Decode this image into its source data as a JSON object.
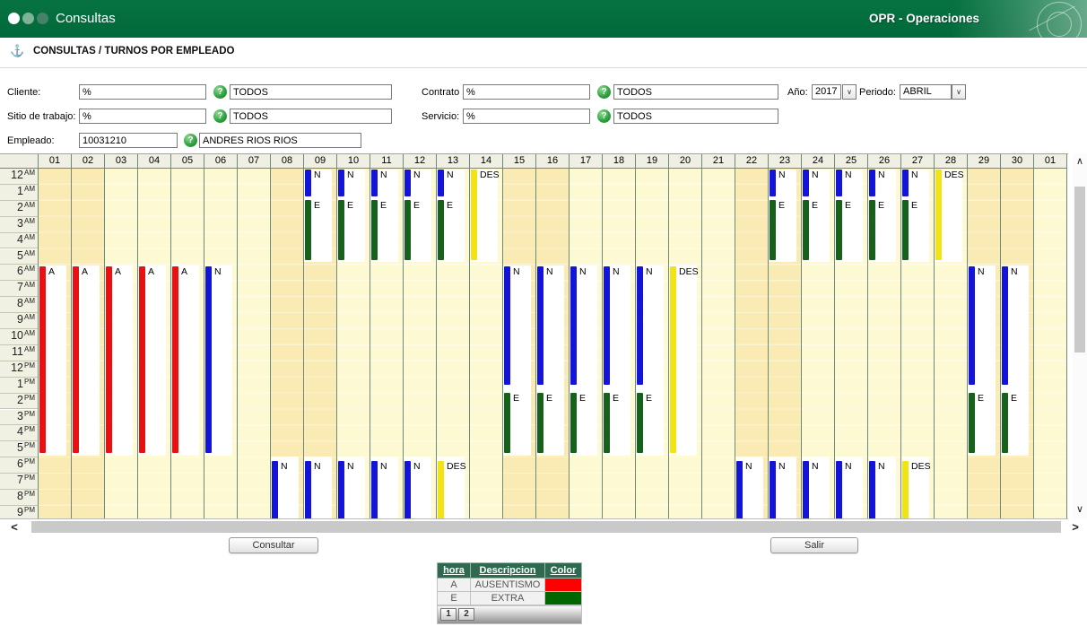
{
  "titlebar": {
    "title": "Consultas",
    "right_label": "OPR - Operaciones"
  },
  "breadcrumb": {
    "title": "CONSULTAS / TURNOS POR EMPLEADO"
  },
  "icons": {
    "help": "?",
    "anchor": "⚓",
    "dropdown": "∨",
    "scroll_up": "∧",
    "scroll_down": "∨",
    "scroll_left": "<",
    "scroll_right": ">"
  },
  "filters": {
    "cliente": {
      "label": "Cliente:",
      "code": "%",
      "name": "TODOS"
    },
    "contrato": {
      "label": "Contrato",
      "code": "%",
      "name": "TODOS"
    },
    "anio": {
      "label": "Año:",
      "value": "2017"
    },
    "periodo": {
      "label": "Periodo:",
      "value": "ABRIL"
    },
    "sitio": {
      "label": "Sitio de trabajo:",
      "code": "%",
      "name": "TODOS"
    },
    "servicio": {
      "label": "Servicio:",
      "code": "%",
      "name": "TODOS"
    },
    "empleado": {
      "label": "Empleado:",
      "code": "10031210",
      "name": "ANDRES RIOS RIOS"
    }
  },
  "buttons": {
    "consultar": "Consultar",
    "salir": "Salir"
  },
  "chart_data": {
    "type": "table",
    "title": "Turnos por empleado — ABRIL 2017 (ANDRES RIOS RIOS)",
    "description": "Schedule grid: columns are days 01-30 of the period plus next 01; rows are hours of day (12 AM to 9 PM visible). Vertical colored bars mark shifts: N=blue, E=green (EXTRA), A=red (AUSENTISMO), DES=yellow (descanso). Weekend day columns are shaded darker.",
    "days": [
      "01",
      "02",
      "03",
      "04",
      "05",
      "06",
      "07",
      "08",
      "09",
      "10",
      "11",
      "12",
      "13",
      "14",
      "15",
      "16",
      "17",
      "18",
      "19",
      "20",
      "21",
      "22",
      "23",
      "24",
      "25",
      "26",
      "27",
      "28",
      "29",
      "30",
      "01"
    ],
    "weekend_day_indices": [
      0,
      1,
      7,
      8,
      14,
      15,
      21,
      22,
      28,
      29
    ],
    "hour_labels": [
      [
        "12",
        "AM"
      ],
      [
        "1",
        "AM"
      ],
      [
        "2",
        "AM"
      ],
      [
        "3",
        "AM"
      ],
      [
        "4",
        "AM"
      ],
      [
        "5",
        "AM"
      ],
      [
        "6",
        "AM"
      ],
      [
        "7",
        "AM"
      ],
      [
        "8",
        "AM"
      ],
      [
        "9",
        "AM"
      ],
      [
        "10",
        "AM"
      ],
      [
        "11",
        "AM"
      ],
      [
        "12",
        "PM"
      ],
      [
        "1",
        "PM"
      ],
      [
        "2",
        "PM"
      ],
      [
        "3",
        "PM"
      ],
      [
        "4",
        "PM"
      ],
      [
        "5",
        "PM"
      ],
      [
        "6",
        "PM"
      ],
      [
        "7",
        "PM"
      ],
      [
        "8",
        "PM"
      ],
      [
        "9",
        "PM"
      ]
    ],
    "colors": {
      "N": "#1414d8",
      "E": "#17611c",
      "A": "#e81111",
      "DES": "#f2e414"
    },
    "shifts": [
      {
        "days": [
          9,
          10,
          11,
          12,
          13,
          23,
          24,
          25,
          26,
          27
        ],
        "block": [
          0.03,
          5.82
        ],
        "segments": [
          {
            "code": "N",
            "start": 0.06,
            "end": 1.72
          },
          {
            "code": "E",
            "start": 1.98,
            "end": 5.7
          }
        ]
      },
      {
        "days": [
          14,
          28
        ],
        "block": [
          0.03,
          5.82
        ],
        "segments": [
          {
            "code": "DES",
            "start": 0.06,
            "end": 5.7
          }
        ]
      },
      {
        "days": [
          1,
          2,
          3,
          4,
          5
        ],
        "block": [
          6.02,
          17.88
        ],
        "segments": [
          {
            "code": "A",
            "start": 6.08,
            "end": 17.72
          }
        ]
      },
      {
        "days": [
          6
        ],
        "block": [
          6.02,
          17.88
        ],
        "segments": [
          {
            "code": "N",
            "start": 6.08,
            "end": 17.72
          }
        ]
      },
      {
        "days": [
          15,
          16,
          17,
          18,
          19,
          29,
          30
        ],
        "block": [
          6.02,
          17.88
        ],
        "segments": [
          {
            "code": "N",
            "start": 6.08,
            "end": 13.48
          },
          {
            "code": "E",
            "start": 13.98,
            "end": 17.72
          }
        ]
      },
      {
        "days": [
          20
        ],
        "block": [
          6.02,
          17.88
        ],
        "segments": [
          {
            "code": "DES",
            "start": 6.08,
            "end": 17.72
          }
        ]
      },
      {
        "days": [
          8,
          9,
          10,
          11,
          12,
          22,
          23,
          24,
          25,
          26
        ],
        "block": [
          17.95,
          24.4
        ],
        "segments": [
          {
            "code": "N",
            "start": 18.2,
            "end": 24.4
          }
        ]
      },
      {
        "days": [
          13,
          27
        ],
        "block": [
          17.95,
          24.4
        ],
        "segments": [
          {
            "code": "DES",
            "start": 18.2,
            "end": 24.4
          }
        ]
      }
    ]
  },
  "legend_table": {
    "headers": [
      "hora",
      "Descripcion",
      "Color"
    ],
    "rows": [
      {
        "hora": "A",
        "descripcion": "AUSENTISMO",
        "color": "#ff0000"
      },
      {
        "hora": "E",
        "descripcion": "EXTRA",
        "color": "#006600"
      }
    ],
    "pages": [
      "1",
      "2"
    ],
    "current_page": "1"
  }
}
